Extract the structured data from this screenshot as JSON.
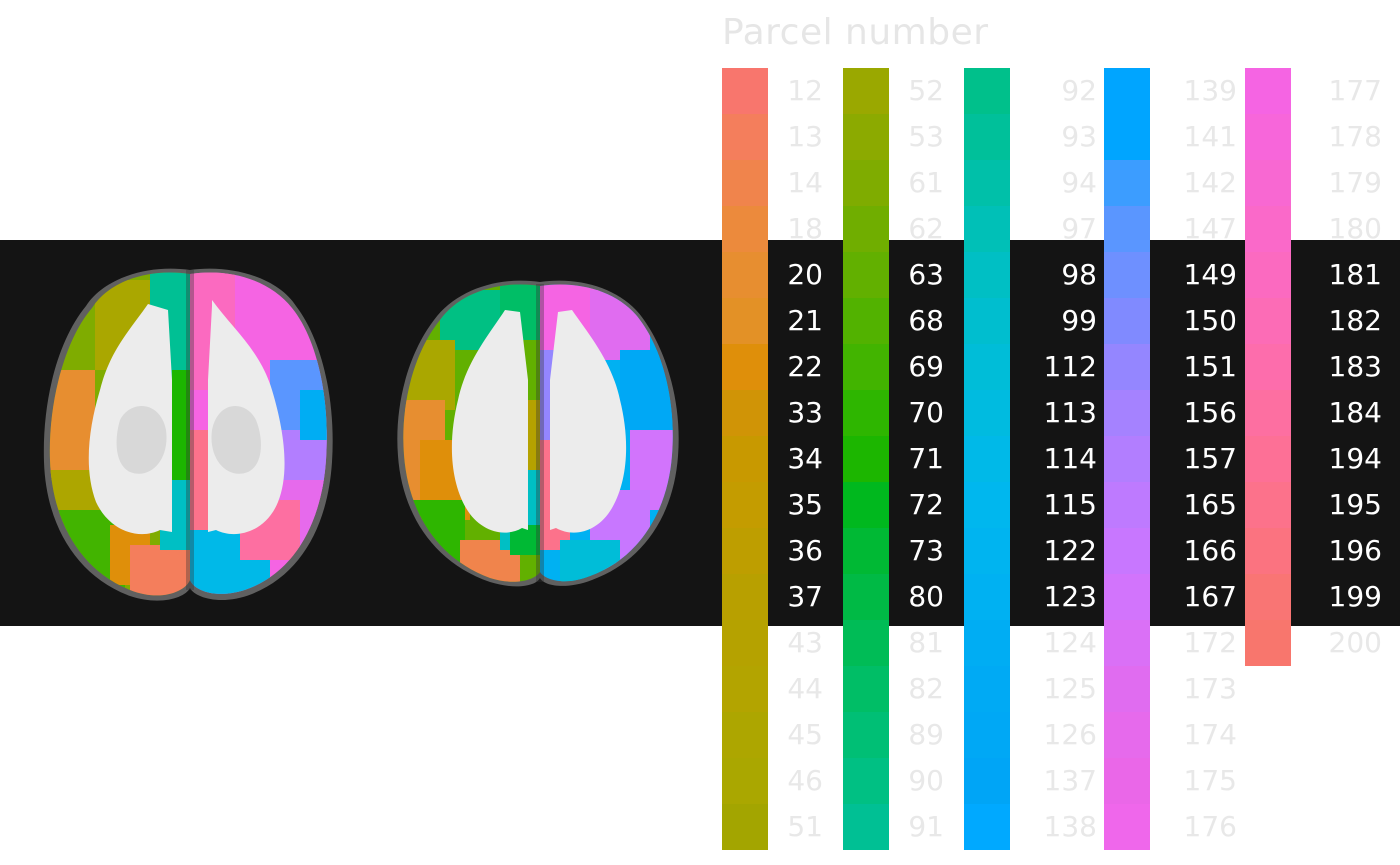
{
  "legend": {
    "title": "Parcel number",
    "highlight_rows": [
      4,
      11
    ],
    "columns": [
      {
        "numbers": [
          "12",
          "13",
          "14",
          "18",
          "20",
          "21",
          "22",
          "33",
          "34",
          "35",
          "36",
          "37",
          "43",
          "44",
          "45",
          "46",
          "51"
        ],
        "colors": [
          "#F8766D",
          "#F47E5C",
          "#F0844C",
          "#EC8A3C",
          "#E78E30",
          "#E39126",
          "#DF8F0A",
          "#D09406",
          "#C89900",
          "#C49C00",
          "#BE9E00",
          "#B8A000",
          "#B5A200",
          "#B3A400",
          "#ADA600",
          "#AAA700",
          "#A3A500"
        ]
      },
      {
        "numbers": [
          "52",
          "53",
          "61",
          "62",
          "63",
          "68",
          "69",
          "70",
          "71",
          "72",
          "73",
          "80",
          "81",
          "82",
          "89",
          "90",
          "91"
        ],
        "colors": [
          "#9AA800",
          "#8CAA00",
          "#7FAC00",
          "#70AE00",
          "#62B000",
          "#52B200",
          "#42B400",
          "#2EB600",
          "#1CB600",
          "#00B81E",
          "#00B934",
          "#00BA45",
          "#00BC56",
          "#00BE66",
          "#00BF75",
          "#00C083",
          "#00C094"
        ]
      },
      {
        "numbers": [
          "92",
          "93",
          "94",
          "97",
          "98",
          "99",
          "112",
          "113",
          "114",
          "115",
          "122",
          "123",
          "124",
          "125",
          "126",
          "137",
          "138"
        ],
        "colors": [
          "#00C08B",
          "#00C09A",
          "#00C0A9",
          "#00C0B7",
          "#00BFC4",
          "#00BECF",
          "#00BDD8",
          "#00BBE0",
          "#00B9E8",
          "#00B7EE",
          "#00B4F0",
          "#00B1F2",
          "#00ADF3",
          "#00AAF4",
          "#00A8F5",
          "#00A5F6",
          "#00A9FF"
        ]
      },
      {
        "numbers": [
          "139",
          "141",
          "142",
          "147",
          "149",
          "150",
          "151",
          "156",
          "157",
          "165",
          "166",
          "167",
          "172",
          "173",
          "174",
          "175",
          "176"
        ],
        "colors": [
          "#00A5FF",
          "#00A5FF",
          "#3C9DFF",
          "#5A96FF",
          "#6E90FF",
          "#808AFF",
          "#9486FF",
          "#A582FF",
          "#B27EFF",
          "#BE7AFF",
          "#C877FF",
          "#D274FC",
          "#DA70F6",
          "#E06CF0",
          "#E66AEC",
          "#EA67E8",
          "#EF67EB"
        ]
      },
      {
        "numbers": [
          "177",
          "178",
          "179",
          "180",
          "181",
          "182",
          "183",
          "184",
          "194",
          "195",
          "196",
          "199",
          "200"
        ],
        "colors": [
          "#F564E3",
          "#F766DA",
          "#F868D2",
          "#FA69C9",
          "#FB6AC0",
          "#FC6CB6",
          "#FD6DAC",
          "#FD6FA1",
          "#FD7096",
          "#FC728B",
          "#FB7380",
          "#F97574",
          "#F8766D"
        ]
      }
    ]
  }
}
